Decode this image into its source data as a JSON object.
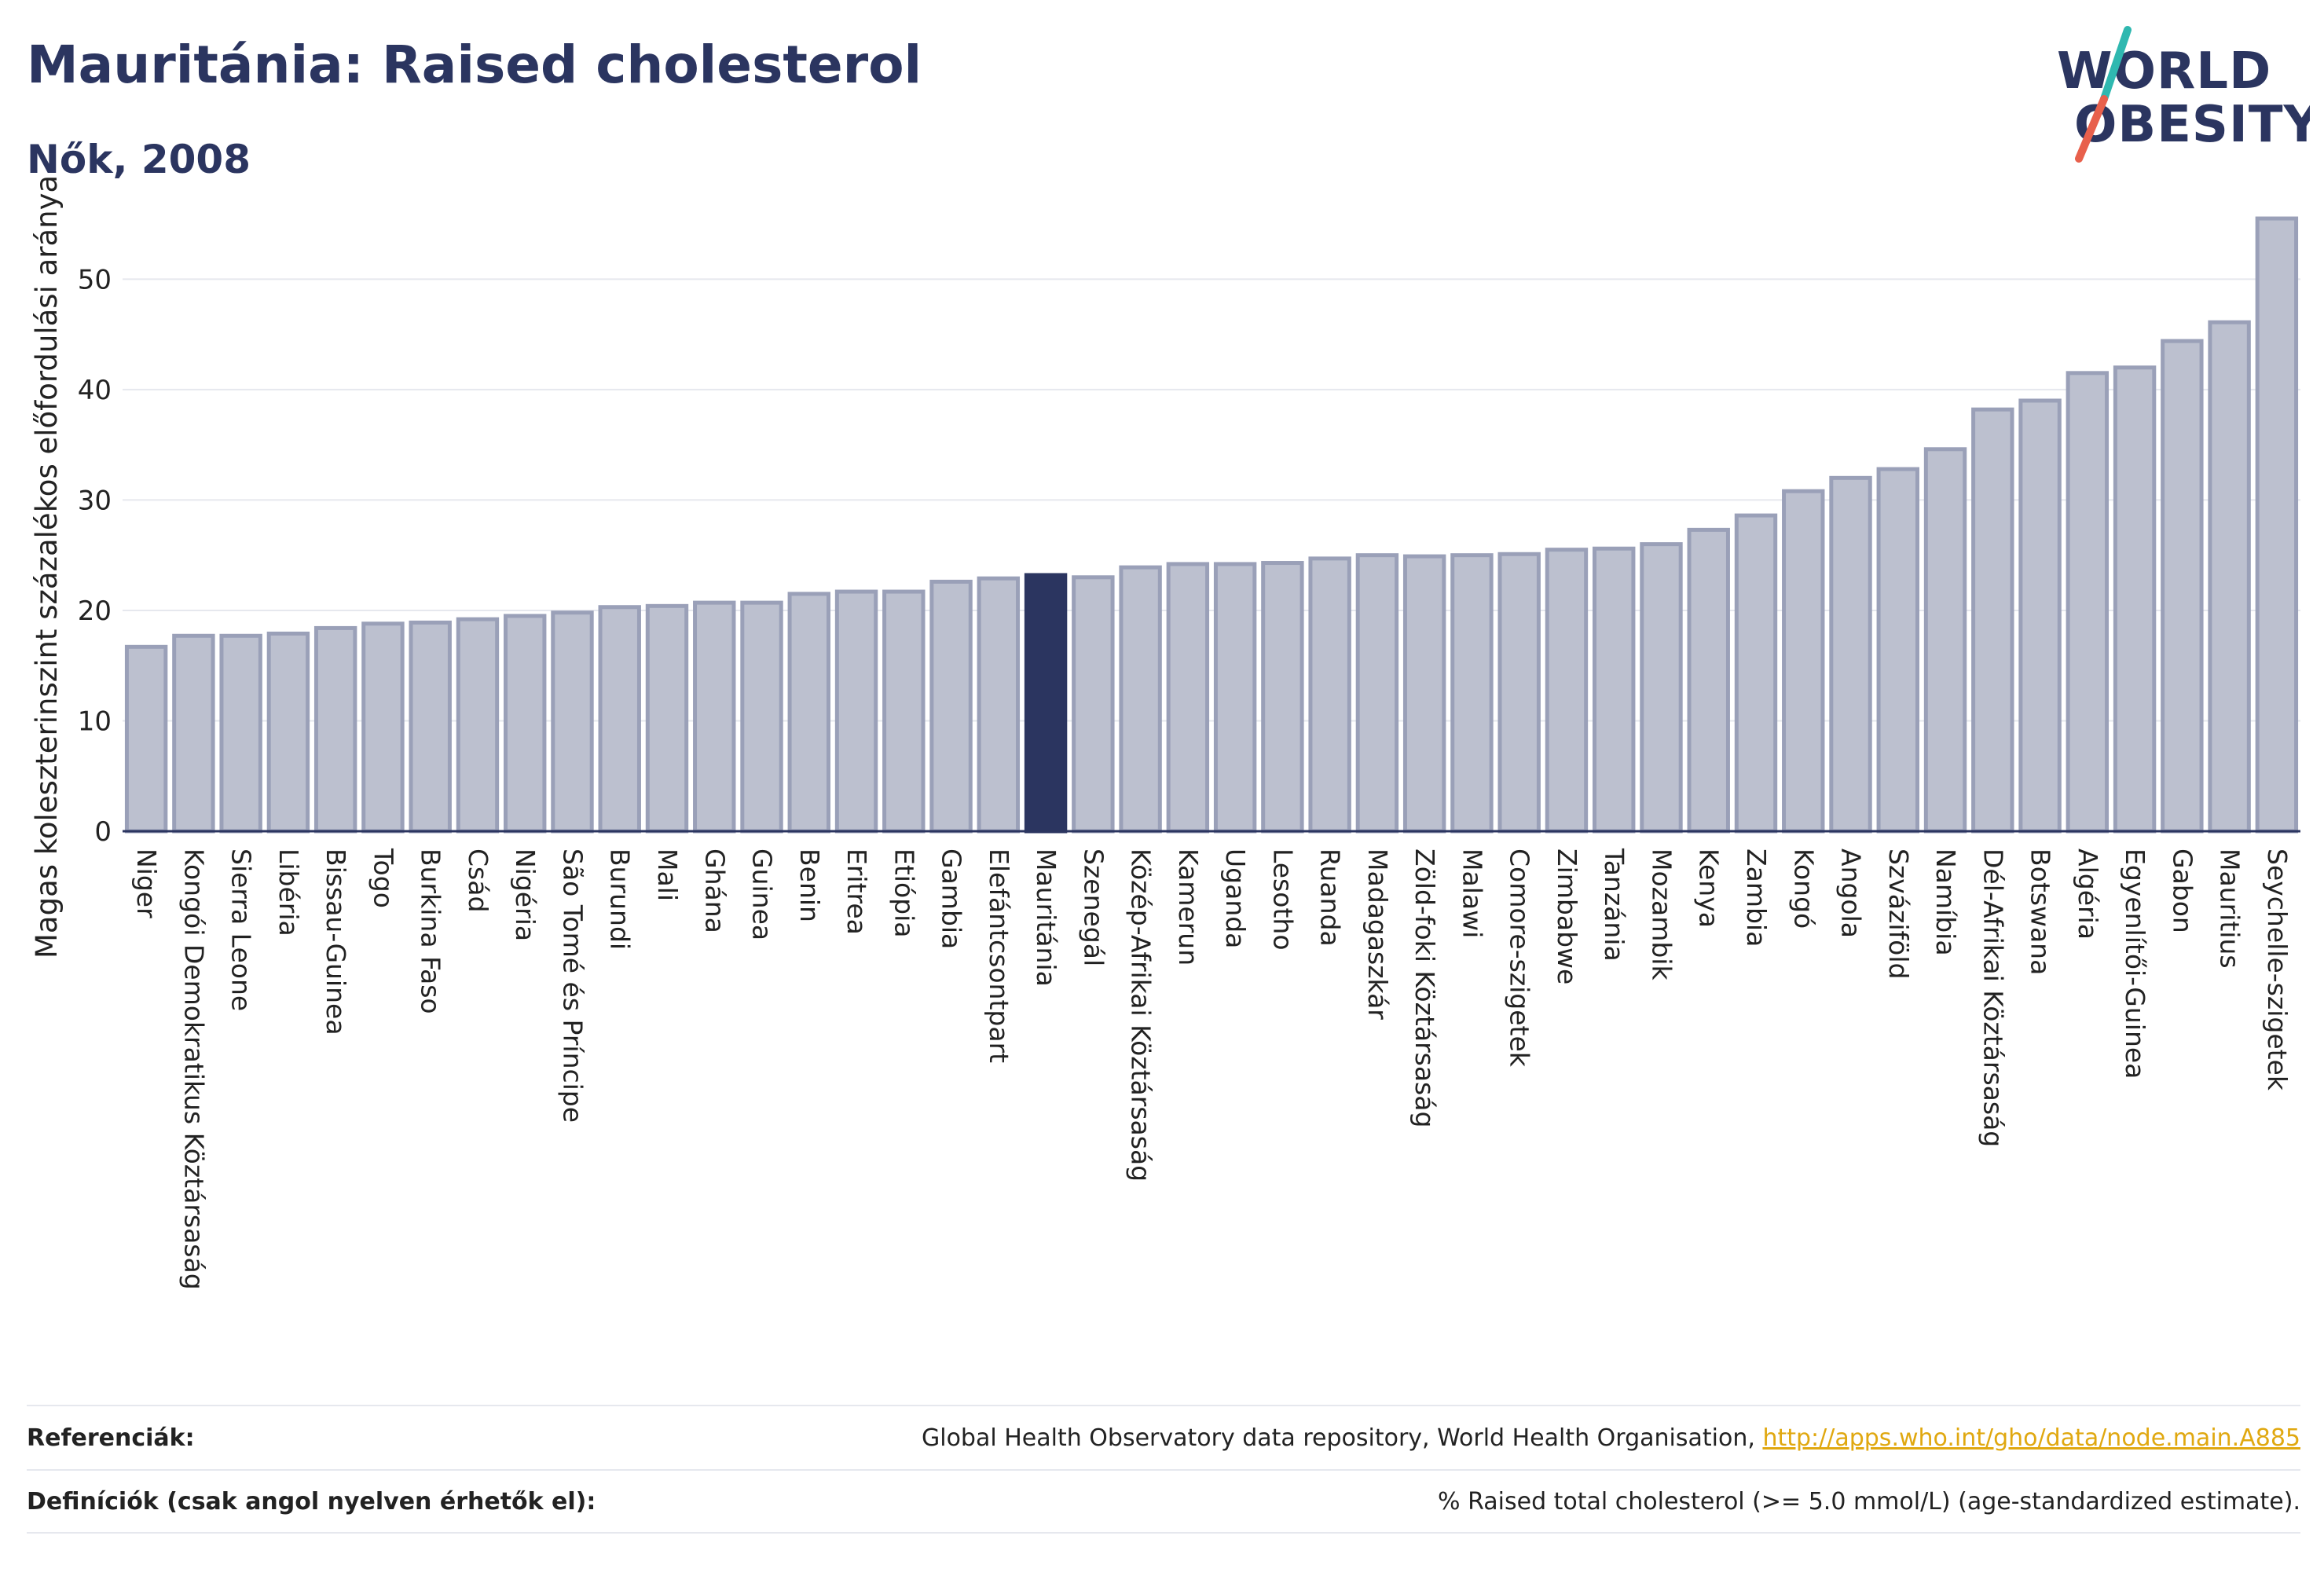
{
  "header": {
    "title": "Mauritánia: Raised cholesterol",
    "subtitle": "Nők, 2008"
  },
  "logo": {
    "line1": "WORLD",
    "line2": "OBESITY",
    "colors": {
      "text": "#2b3560",
      "slash_teal": "#2fb8b0",
      "slash_red": "#e8604c"
    }
  },
  "colors": {
    "bar_default": "#bcc0cf",
    "bar_default_stroke": "#9aa0b8",
    "bar_highlight": "#2b3560",
    "grid": "#e6e8ee",
    "axis": "#2b3560"
  },
  "chart_data": {
    "type": "bar",
    "title": "",
    "ylabel": "Magas koleszterinszint százalékos előfordulási aránya",
    "xlabel": "",
    "ylim": [
      0,
      57
    ],
    "yticks": [
      0,
      10,
      20,
      30,
      40,
      50
    ],
    "grid": true,
    "highlight": "Mauritánia",
    "categories": [
      "Niger",
      "Kongói Demokratikus Köztársaság",
      "Sierra Leone",
      "Libéria",
      "Bissau-Guinea",
      "Togo",
      "Burkina Faso",
      "Csád",
      "Nigéria",
      "São Tomé és Príncipe",
      "Burundi",
      "Mali",
      "Ghána",
      "Guinea",
      "Benin",
      "Eritrea",
      "Etiópia",
      "Gambia",
      "Elefántcsontpart",
      "Mauritánia",
      "Szenegál",
      "Közép-Afrikai Köztársaság",
      "Kamerun",
      "Uganda",
      "Lesotho",
      "Ruanda",
      "Madagaszkár",
      "Zöld-foki Köztársaság",
      "Malawi",
      "Comore-szigetek",
      "Zimbabwe",
      "Tanzánia",
      "Mozambik",
      "Kenya",
      "Zambia",
      "Kongó",
      "Angola",
      "Szváziföld",
      "Namíbia",
      "Dél-Afrikai Köztársaság",
      "Botswana",
      "Algéria",
      "Egyenlítői-Guinea",
      "Gabon",
      "Mauritius",
      "Seychelle-szigetek"
    ],
    "values": [
      16.7,
      17.7,
      17.7,
      17.9,
      18.4,
      18.8,
      18.9,
      19.2,
      19.5,
      19.8,
      20.3,
      20.4,
      20.7,
      20.7,
      21.5,
      21.7,
      21.7,
      22.6,
      22.9,
      23.2,
      23.0,
      23.9,
      24.2,
      24.2,
      24.3,
      24.7,
      25.0,
      24.9,
      25.0,
      25.1,
      25.5,
      25.6,
      26.0,
      27.3,
      28.6,
      30.8,
      32.0,
      32.8,
      34.6,
      38.2,
      39.0,
      41.5,
      42.0,
      44.4,
      46.1,
      55.5
    ]
  },
  "footer": {
    "references_label": "Referenciák:",
    "references_text": "Global Health Observatory data repository, World Health Organisation,",
    "references_link": "http://apps.who.int/gho/data/node.main.A885",
    "definitions_label": "Definíciók (csak angol nyelven érhetők el):",
    "definitions_text": "% Raised total cholesterol (>= 5.0 mmol/L) (age-standardized estimate)."
  }
}
